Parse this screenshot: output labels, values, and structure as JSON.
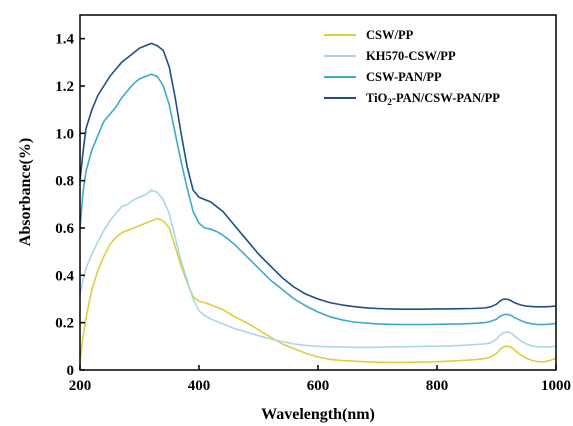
{
  "chart_data": {
    "type": "line",
    "title": "",
    "xlabel": "Wavelength(nm)",
    "ylabel": "Absorbance(%)",
    "xlim": [
      200,
      1000
    ],
    "ylim": [
      0,
      1.5
    ],
    "x_ticks": [
      "200",
      "400",
      "600",
      "800",
      "1000"
    ],
    "y_ticks": [
      "0",
      "0.2",
      "0.4",
      "0.6",
      "0.8",
      "1.0",
      "1.2",
      "1.4"
    ],
    "x_tick_values": [
      200,
      400,
      600,
      800,
      1000
    ],
    "y_tick_values": [
      0,
      0.2,
      0.4,
      0.6,
      0.8,
      1.0,
      1.2,
      1.4
    ],
    "grid": false,
    "legend_position": "top-right",
    "x": [
      200,
      205,
      210,
      220,
      230,
      240,
      250,
      260,
      270,
      280,
      290,
      300,
      310,
      320,
      330,
      340,
      350,
      360,
      370,
      380,
      390,
      400,
      410,
      420,
      430,
      440,
      450,
      460,
      480,
      500,
      520,
      540,
      560,
      580,
      600,
      620,
      640,
      660,
      680,
      700,
      720,
      740,
      760,
      780,
      800,
      820,
      840,
      860,
      880,
      890,
      900,
      905,
      910,
      915,
      920,
      925,
      930,
      940,
      950,
      960,
      970,
      980,
      990,
      1000
    ],
    "series": [
      {
        "name": "CSW/PP",
        "color": "#e2cb3c",
        "values": [
          0.04,
          0.14,
          0.22,
          0.34,
          0.42,
          0.48,
          0.53,
          0.56,
          0.58,
          0.59,
          0.6,
          0.61,
          0.62,
          0.63,
          0.64,
          0.63,
          0.6,
          0.52,
          0.44,
          0.37,
          0.31,
          0.29,
          0.285,
          0.275,
          0.265,
          0.255,
          0.24,
          0.225,
          0.2,
          0.17,
          0.14,
          0.11,
          0.09,
          0.07,
          0.055,
          0.045,
          0.04,
          0.037,
          0.035,
          0.033,
          0.032,
          0.032,
          0.033,
          0.034,
          0.035,
          0.037,
          0.04,
          0.043,
          0.048,
          0.055,
          0.07,
          0.085,
          0.095,
          0.1,
          0.1,
          0.095,
          0.085,
          0.065,
          0.05,
          0.04,
          0.035,
          0.035,
          0.04,
          0.05
        ]
      },
      {
        "name": "KH570-CSW/PP",
        "color": "#a9d7e7",
        "values": [
          0.32,
          0.38,
          0.43,
          0.49,
          0.54,
          0.59,
          0.63,
          0.66,
          0.69,
          0.7,
          0.72,
          0.73,
          0.74,
          0.76,
          0.75,
          0.72,
          0.66,
          0.56,
          0.46,
          0.38,
          0.3,
          0.25,
          0.23,
          0.215,
          0.205,
          0.195,
          0.185,
          0.175,
          0.16,
          0.145,
          0.132,
          0.12,
          0.11,
          0.104,
          0.1,
          0.098,
          0.097,
          0.096,
          0.096,
          0.096,
          0.097,
          0.098,
          0.099,
          0.1,
          0.1,
          0.102,
          0.104,
          0.107,
          0.11,
          0.115,
          0.13,
          0.145,
          0.155,
          0.16,
          0.16,
          0.155,
          0.145,
          0.125,
          0.11,
          0.102,
          0.098,
          0.097,
          0.098,
          0.1
        ]
      },
      {
        "name": "CSW-PAN/PP",
        "color": "#3fa8cf",
        "values": [
          0.6,
          0.75,
          0.84,
          0.93,
          0.99,
          1.05,
          1.08,
          1.11,
          1.15,
          1.18,
          1.21,
          1.23,
          1.24,
          1.25,
          1.24,
          1.2,
          1.12,
          1.0,
          0.88,
          0.77,
          0.67,
          0.62,
          0.6,
          0.595,
          0.585,
          0.57,
          0.55,
          0.53,
          0.48,
          0.43,
          0.38,
          0.34,
          0.3,
          0.27,
          0.245,
          0.225,
          0.212,
          0.203,
          0.198,
          0.195,
          0.193,
          0.192,
          0.192,
          0.192,
          0.193,
          0.194,
          0.195,
          0.197,
          0.2,
          0.205,
          0.215,
          0.225,
          0.232,
          0.235,
          0.234,
          0.23,
          0.222,
          0.21,
          0.2,
          0.195,
          0.192,
          0.192,
          0.194,
          0.197
        ]
      },
      {
        "name": "TiO2-PAN/CSW-PAN/PP",
        "color": "#1f4f8b",
        "values": [
          0.8,
          0.92,
          1.02,
          1.1,
          1.16,
          1.2,
          1.24,
          1.27,
          1.3,
          1.32,
          1.34,
          1.36,
          1.37,
          1.38,
          1.37,
          1.35,
          1.28,
          1.15,
          1.0,
          0.86,
          0.76,
          0.73,
          0.72,
          0.71,
          0.69,
          0.67,
          0.64,
          0.61,
          0.55,
          0.49,
          0.44,
          0.39,
          0.35,
          0.32,
          0.3,
          0.285,
          0.275,
          0.268,
          0.263,
          0.26,
          0.258,
          0.257,
          0.257,
          0.257,
          0.258,
          0.258,
          0.259,
          0.26,
          0.262,
          0.267,
          0.278,
          0.29,
          0.298,
          0.3,
          0.298,
          0.292,
          0.285,
          0.275,
          0.27,
          0.268,
          0.267,
          0.267,
          0.268,
          0.27
        ]
      }
    ],
    "legend": [
      {
        "label_main": "CSW/PP",
        "label_sub": "",
        "label_rest": ""
      },
      {
        "label_main": "KH570-CSW/PP",
        "label_sub": "",
        "label_rest": ""
      },
      {
        "label_main": "CSW-PAN/PP",
        "label_sub": "",
        "label_rest": ""
      },
      {
        "label_main": "TiO",
        "label_sub": "2",
        "label_rest": "-PAN/CSW-PAN/PP"
      }
    ]
  }
}
